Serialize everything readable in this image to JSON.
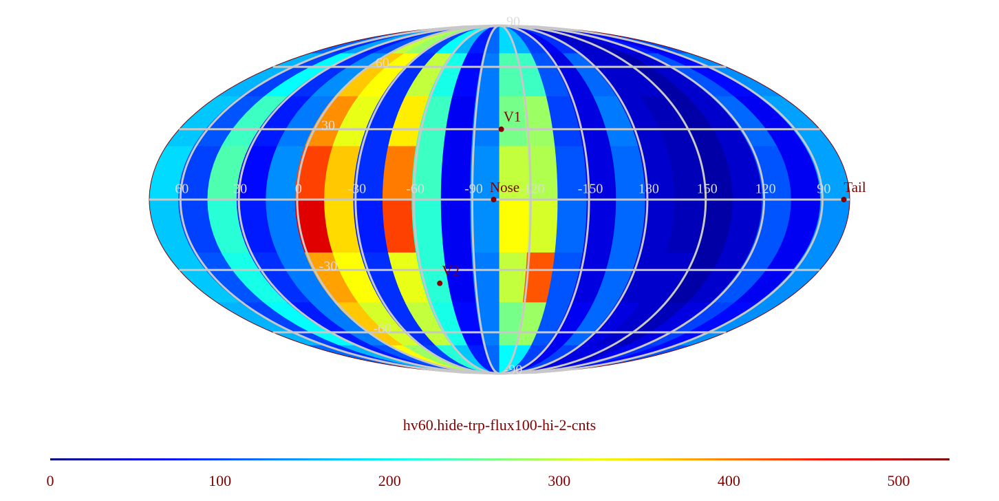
{
  "chart_data": {
    "type": "mollweide-heatmap",
    "title": "hv60.hide-trp-flux100-hi-2-cnts",
    "xlim": [
      76,
      -284
    ],
    "ylim": [
      90,
      -90
    ],
    "xticks": [
      60,
      30,
      0,
      -30,
      -60,
      -90,
      -120,
      -150,
      {
        "value": -180,
        "label": "180"
      },
      {
        "value": -210,
        "label": "150"
      },
      {
        "value": -240,
        "label": "120"
      },
      {
        "value": -270,
        "label": "90"
      }
    ],
    "yticks": [
      90,
      60,
      30,
      -30,
      -60,
      -90
    ],
    "grid": true,
    "grid_color": "#c8c8c8",
    "colormap": "jet",
    "clim": [
      0,
      530
    ],
    "cticks": [
      0,
      100,
      200,
      300,
      400,
      500
    ],
    "z": [
      [
        120,
        90,
        150,
        80,
        110,
        300,
        280,
        100,
        200,
        160,
        80,
        120,
        180,
        160,
        100,
        60,
        90,
        40,
        40,
        30,
        50,
        80,
        60,
        110
      ],
      [
        160,
        100,
        200,
        90,
        140,
        360,
        330,
        90,
        300,
        210,
        70,
        130,
        240,
        230,
        110,
        50,
        120,
        40,
        40,
        20,
        40,
        110,
        70,
        140
      ],
      [
        170,
        110,
        230,
        80,
        130,
        390,
        320,
        90,
        340,
        230,
        60,
        130,
        260,
        280,
        100,
        50,
        130,
        40,
        30,
        20,
        40,
        120,
        60,
        150
      ],
      [
        180,
        100,
        240,
        70,
        140,
        430,
        360,
        90,
        400,
        230,
        60,
        140,
        300,
        290,
        110,
        50,
        120,
        40,
        30,
        20,
        40,
        110,
        60,
        150
      ],
      [
        170,
        100,
        220,
        80,
        130,
        480,
        350,
        80,
        430,
        220,
        60,
        140,
        330,
        310,
        120,
        50,
        120,
        40,
        30,
        20,
        40,
        110,
        60,
        140
      ],
      [
        170,
        110,
        210,
        90,
        130,
        380,
        330,
        90,
        320,
        220,
        60,
        130,
        300,
        420,
        110,
        50,
        120,
        40,
        40,
        20,
        40,
        110,
        60,
        140
      ],
      [
        160,
        100,
        200,
        80,
        130,
        360,
        310,
        90,
        300,
        210,
        70,
        130,
        260,
        280,
        110,
        60,
        120,
        50,
        40,
        30,
        50,
        100,
        70,
        140
      ],
      [
        120,
        90,
        160,
        80,
        110,
        330,
        280,
        100,
        220,
        170,
        80,
        120,
        200,
        190,
        100,
        60,
        100,
        50,
        50,
        40,
        60,
        90,
        70,
        110
      ]
    ],
    "points": [
      {
        "label": "V1",
        "lon": -105,
        "lat": 30
      },
      {
        "label": "Nose",
        "lon": -101,
        "lat": 0
      },
      {
        "label": "V2",
        "lon": -69,
        "lat": -36
      },
      {
        "label": "Tail",
        "lon": -281,
        "lat": 0
      }
    ],
    "point_color": "#800000"
  }
}
